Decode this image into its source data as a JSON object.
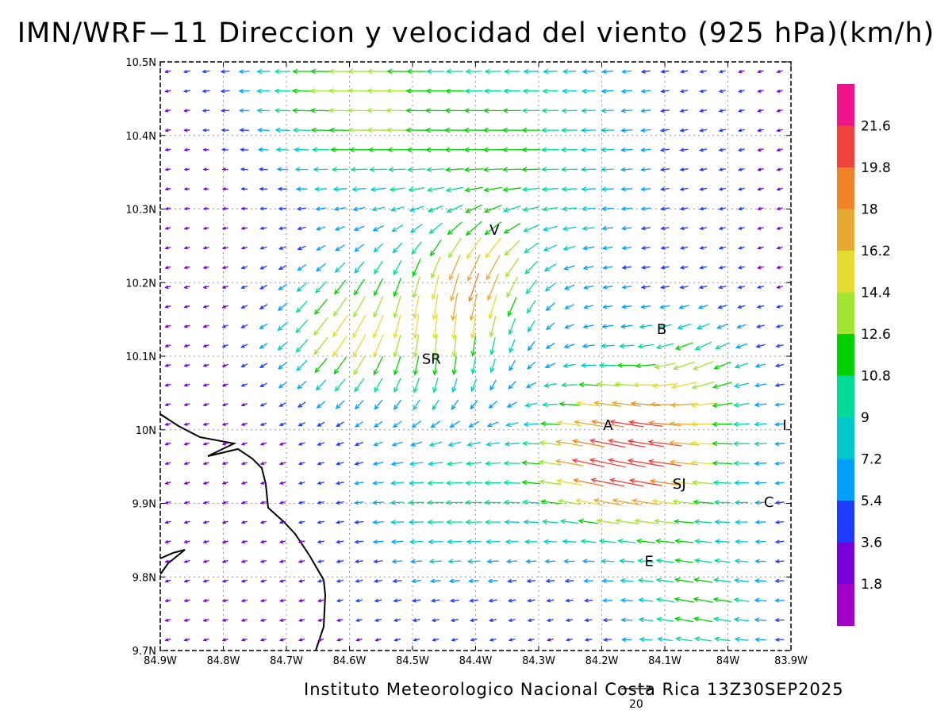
{
  "title": "IMN/WRF−11 Direccion y velocidad del viento (925 hPa)(km/h)",
  "credit": "Instituto Meteorologico Nacional Costa Rica 13Z30SEP2025",
  "reference_vector_label": "20",
  "map": {
    "lon_ticks": [
      "84.9W",
      "84.8W",
      "84.7W",
      "84.6W",
      "84.5W",
      "84.4W",
      "84.3W",
      "84.2W",
      "84.1W",
      "84W",
      "83.9W"
    ],
    "lat_ticks": [
      "10.5N",
      "10.4N",
      "10.3N",
      "10.2N",
      "10.1N",
      "10N",
      "9.9N",
      "9.8N",
      "9.7N"
    ],
    "lon_range": [
      -84.9,
      -83.9
    ],
    "lat_range": [
      9.7,
      10.5
    ],
    "grid": true,
    "places": [
      {
        "label": "V",
        "lon": -84.37,
        "lat": 10.265
      },
      {
        "label": "SR",
        "lon": -84.47,
        "lat": 10.09
      },
      {
        "label": "B",
        "lon": -84.105,
        "lat": 10.13
      },
      {
        "label": "A",
        "lon": -84.19,
        "lat": 10.0
      },
      {
        "label": "I",
        "lon": -83.91,
        "lat": 10.0
      },
      {
        "label": "SJ",
        "lon": -84.077,
        "lat": 9.92
      },
      {
        "label": "C",
        "lon": -83.935,
        "lat": 9.895
      },
      {
        "label": "E",
        "lon": -84.125,
        "lat": 9.815
      }
    ]
  },
  "colorbar": {
    "labels": [
      "21.6",
      "19.8",
      "18",
      "16.2",
      "14.4",
      "12.6",
      "10.8",
      "9",
      "7.2",
      "5.4",
      "3.6",
      "1.8"
    ],
    "colors": [
      "#f0148c",
      "#f0423c",
      "#f08228",
      "#e6aa32",
      "#e6dc32",
      "#a0e632",
      "#00d200",
      "#00dc96",
      "#00c8c8",
      "#00a0ff",
      "#1e3cff",
      "#7800dc",
      "#a000c8"
    ]
  }
}
